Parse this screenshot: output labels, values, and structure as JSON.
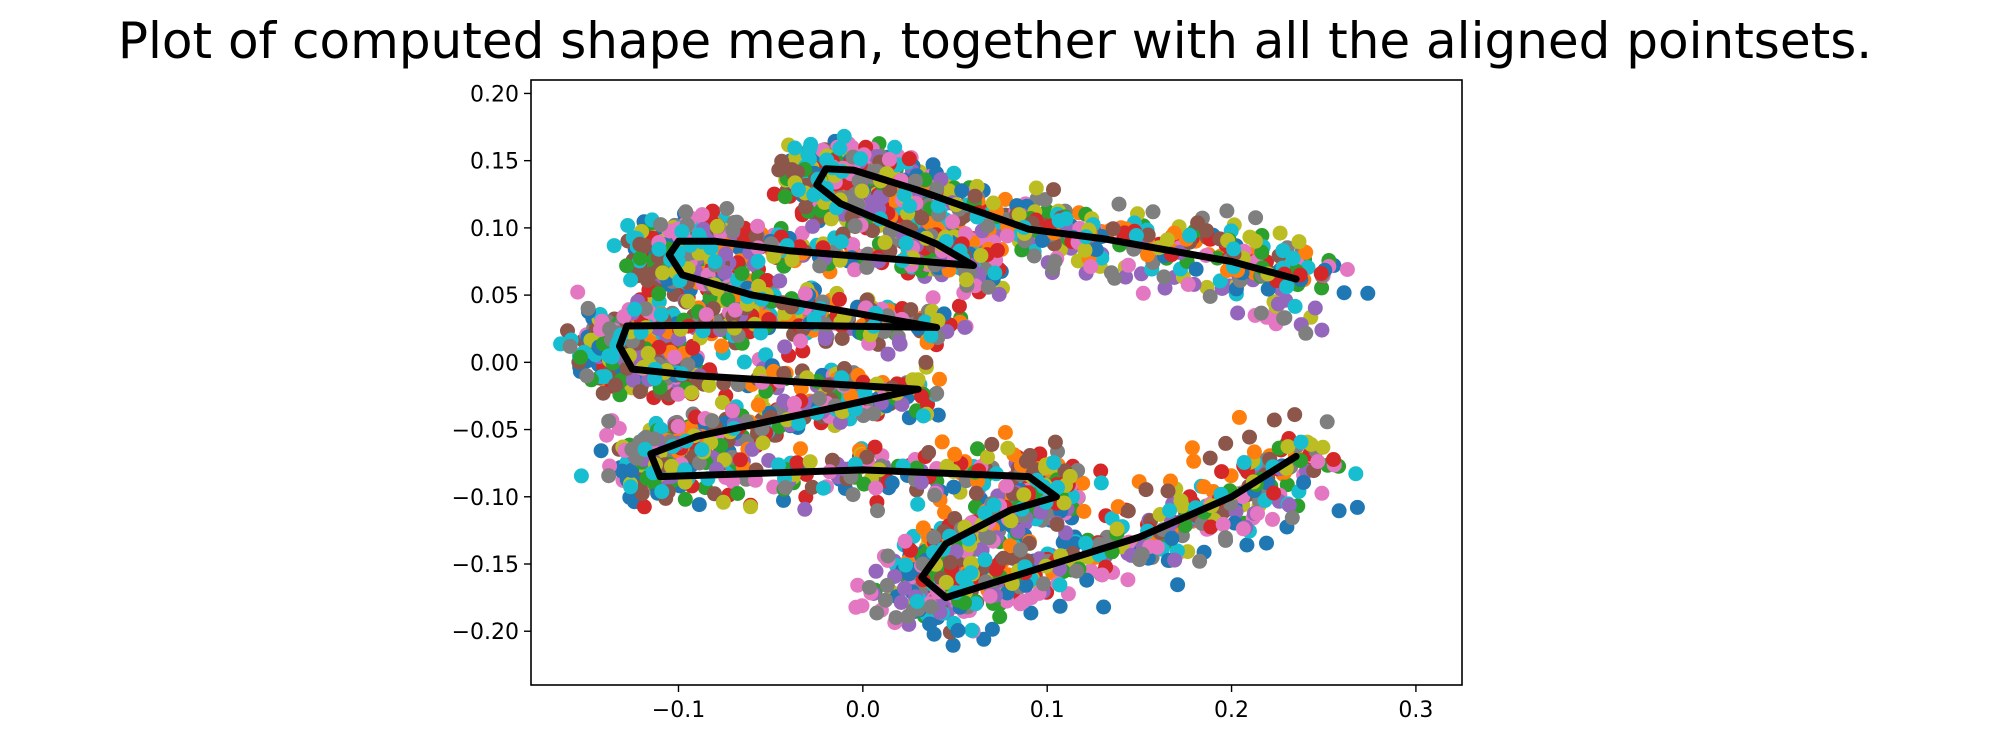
{
  "chart_data": {
    "type": "scatter",
    "title": "Plot of computed shape mean, together with all the aligned pointsets.",
    "xlim": [
      -0.18,
      0.325
    ],
    "ylim": [
      -0.24,
      0.21
    ],
    "xticks": [
      -0.1,
      0.0,
      0.1,
      0.2,
      0.3
    ],
    "xtick_labels": [
      "−0.1",
      "0.0",
      "0.1",
      "0.2",
      "0.3"
    ],
    "yticks": [
      -0.2,
      -0.15,
      -0.1,
      -0.05,
      0.0,
      0.05,
      0.1,
      0.15,
      0.2
    ],
    "ytick_labels": [
      "−0.20",
      "−0.15",
      "−0.10",
      "−0.05",
      "0.00",
      "0.05",
      "0.10",
      "0.15",
      "0.20"
    ],
    "grid": false,
    "palette": [
      "#1f77b4",
      "#ff7f0e",
      "#2ca02c",
      "#d62728",
      "#9467bd",
      "#8c564b",
      "#e377c2",
      "#7f7f7f",
      "#bcbd22",
      "#17becf"
    ],
    "mean_shape": {
      "color": "#000000",
      "points": [
        [
          0.235,
          0.062
        ],
        [
          0.2,
          0.075
        ],
        [
          0.13,
          0.092
        ],
        [
          0.09,
          0.099
        ],
        [
          0.03,
          0.128
        ],
        [
          -0.005,
          0.143
        ],
        [
          -0.02,
          0.144
        ],
        [
          -0.025,
          0.132
        ],
        [
          -0.012,
          0.118
        ],
        [
          0.04,
          0.088
        ],
        [
          0.06,
          0.072
        ],
        [
          -0.04,
          0.083
        ],
        [
          -0.08,
          0.09
        ],
        [
          -0.1,
          0.09
        ],
        [
          -0.105,
          0.08
        ],
        [
          -0.098,
          0.065
        ],
        [
          -0.06,
          0.05
        ],
        [
          0.04,
          0.026
        ],
        [
          -0.06,
          0.028
        ],
        [
          -0.128,
          0.027
        ],
        [
          -0.132,
          0.012
        ],
        [
          -0.125,
          -0.005
        ],
        [
          -0.09,
          -0.01
        ],
        [
          0.03,
          -0.02
        ],
        [
          -0.02,
          -0.035
        ],
        [
          -0.09,
          -0.055
        ],
        [
          -0.115,
          -0.068
        ],
        [
          -0.11,
          -0.085
        ],
        [
          0.0,
          -0.08
        ],
        [
          0.09,
          -0.085
        ],
        [
          0.105,
          -0.1
        ],
        [
          0.08,
          -0.11
        ],
        [
          0.045,
          -0.135
        ],
        [
          0.032,
          -0.16
        ],
        [
          0.045,
          -0.175
        ],
        [
          0.08,
          -0.16
        ],
        [
          0.15,
          -0.13
        ],
        [
          0.2,
          -0.1
        ],
        [
          0.235,
          -0.07
        ]
      ]
    }
  }
}
